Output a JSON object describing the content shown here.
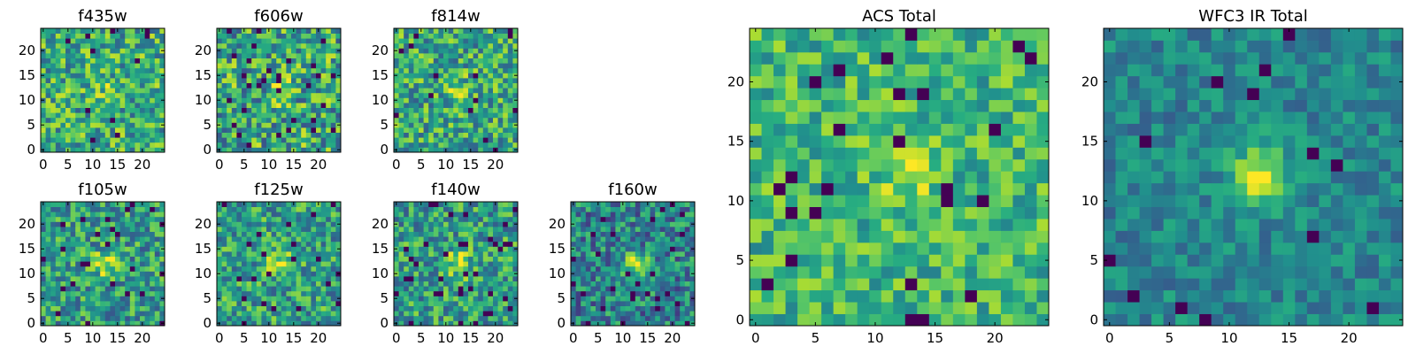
{
  "colors": {
    "colormap": "viridis",
    "background": "#ffffff",
    "frame": "#000000"
  },
  "chart_data": [
    {
      "type": "heatmap",
      "title": "f435w",
      "grid_size": [
        25,
        25
      ],
      "xlim": [
        0,
        25
      ],
      "ylim": [
        0,
        25
      ],
      "xticks": [
        0,
        5,
        10,
        15,
        20
      ],
      "yticks": [
        0,
        5,
        10,
        15,
        20
      ],
      "pixel_block": 1,
      "texture": {
        "seed": 11,
        "mean": 0.62,
        "spread": 0.3,
        "source_peak": 0.12,
        "dark_fraction": 0.02
      }
    },
    {
      "type": "heatmap",
      "title": "f606w",
      "grid_size": [
        25,
        25
      ],
      "xlim": [
        0,
        25
      ],
      "ylim": [
        0,
        25
      ],
      "xticks": [
        0,
        5,
        10,
        15,
        20
      ],
      "yticks": [
        0,
        5,
        10,
        15,
        20
      ],
      "pixel_block": 1,
      "texture": {
        "seed": 23,
        "mean": 0.6,
        "spread": 0.34,
        "source_peak": 0.18,
        "dark_fraction": 0.04
      }
    },
    {
      "type": "heatmap",
      "title": "f814w",
      "grid_size": [
        25,
        25
      ],
      "xlim": [
        0,
        25
      ],
      "ylim": [
        0,
        25
      ],
      "xticks": [
        0,
        5,
        10,
        15,
        20
      ],
      "yticks": [
        0,
        5,
        10,
        15,
        20
      ],
      "pixel_block": 1,
      "texture": {
        "seed": 37,
        "mean": 0.6,
        "spread": 0.3,
        "source_peak": 0.25,
        "dark_fraction": 0.02
      }
    },
    {
      "type": "heatmap",
      "title": "f105w",
      "grid_size": [
        25,
        25
      ],
      "xlim": [
        0,
        25
      ],
      "ylim": [
        0,
        25
      ],
      "xticks": [
        0,
        5,
        10,
        15,
        20
      ],
      "yticks": [
        0,
        5,
        10,
        15,
        20
      ],
      "pixel_block": 1,
      "texture": {
        "seed": 41,
        "mean": 0.55,
        "spread": 0.28,
        "source_peak": 0.35,
        "dark_fraction": 0.04
      }
    },
    {
      "type": "heatmap",
      "title": "f125w",
      "grid_size": [
        25,
        25
      ],
      "xlim": [
        0,
        25
      ],
      "ylim": [
        0,
        25
      ],
      "xticks": [
        0,
        5,
        10,
        15,
        20
      ],
      "yticks": [
        0,
        5,
        10,
        15,
        20
      ],
      "pixel_block": 1,
      "texture": {
        "seed": 53,
        "mean": 0.57,
        "spread": 0.28,
        "source_peak": 0.38,
        "dark_fraction": 0.04
      }
    },
    {
      "type": "heatmap",
      "title": "f140w",
      "grid_size": [
        25,
        25
      ],
      "xlim": [
        0,
        25
      ],
      "ylim": [
        0,
        25
      ],
      "xticks": [
        0,
        5,
        10,
        15,
        20
      ],
      "yticks": [
        0,
        5,
        10,
        15,
        20
      ],
      "pixel_block": 1,
      "texture": {
        "seed": 67,
        "mean": 0.56,
        "spread": 0.28,
        "source_peak": 0.38,
        "dark_fraction": 0.04
      }
    },
    {
      "type": "heatmap",
      "title": "f160w",
      "grid_size": [
        25,
        25
      ],
      "xlim": [
        0,
        25
      ],
      "ylim": [
        0,
        25
      ],
      "xticks": [
        0,
        5,
        10,
        15,
        20
      ],
      "yticks": [
        0,
        5,
        10,
        15,
        20
      ],
      "pixel_block": 1,
      "texture": {
        "seed": 79,
        "mean": 0.45,
        "spread": 0.28,
        "source_peak": 0.5,
        "dark_fraction": 0.05
      }
    },
    {
      "type": "heatmap",
      "title": "ACS Total",
      "grid_size": [
        25,
        25
      ],
      "xlim": [
        0,
        25
      ],
      "ylim": [
        0,
        25
      ],
      "xticks": [
        0,
        5,
        10,
        15,
        20
      ],
      "yticks": [
        0,
        5,
        10,
        15,
        20
      ],
      "pixel_block": 1,
      "texture": {
        "seed": 97,
        "mean": 0.66,
        "spread": 0.22,
        "source_peak": 0.22,
        "dark_fraction": 0.04
      }
    },
    {
      "type": "heatmap",
      "title": "WFC3 IR Total",
      "grid_size": [
        25,
        25
      ],
      "xlim": [
        0,
        25
      ],
      "ylim": [
        0,
        25
      ],
      "xticks": [
        0,
        5,
        10,
        15,
        20
      ],
      "yticks": [
        0,
        5,
        10,
        15,
        20
      ],
      "pixel_block": 1,
      "texture": {
        "seed": 113,
        "mean": 0.46,
        "spread": 0.16,
        "source_peak": 0.55,
        "dark_fraction": 0.03
      }
    }
  ]
}
